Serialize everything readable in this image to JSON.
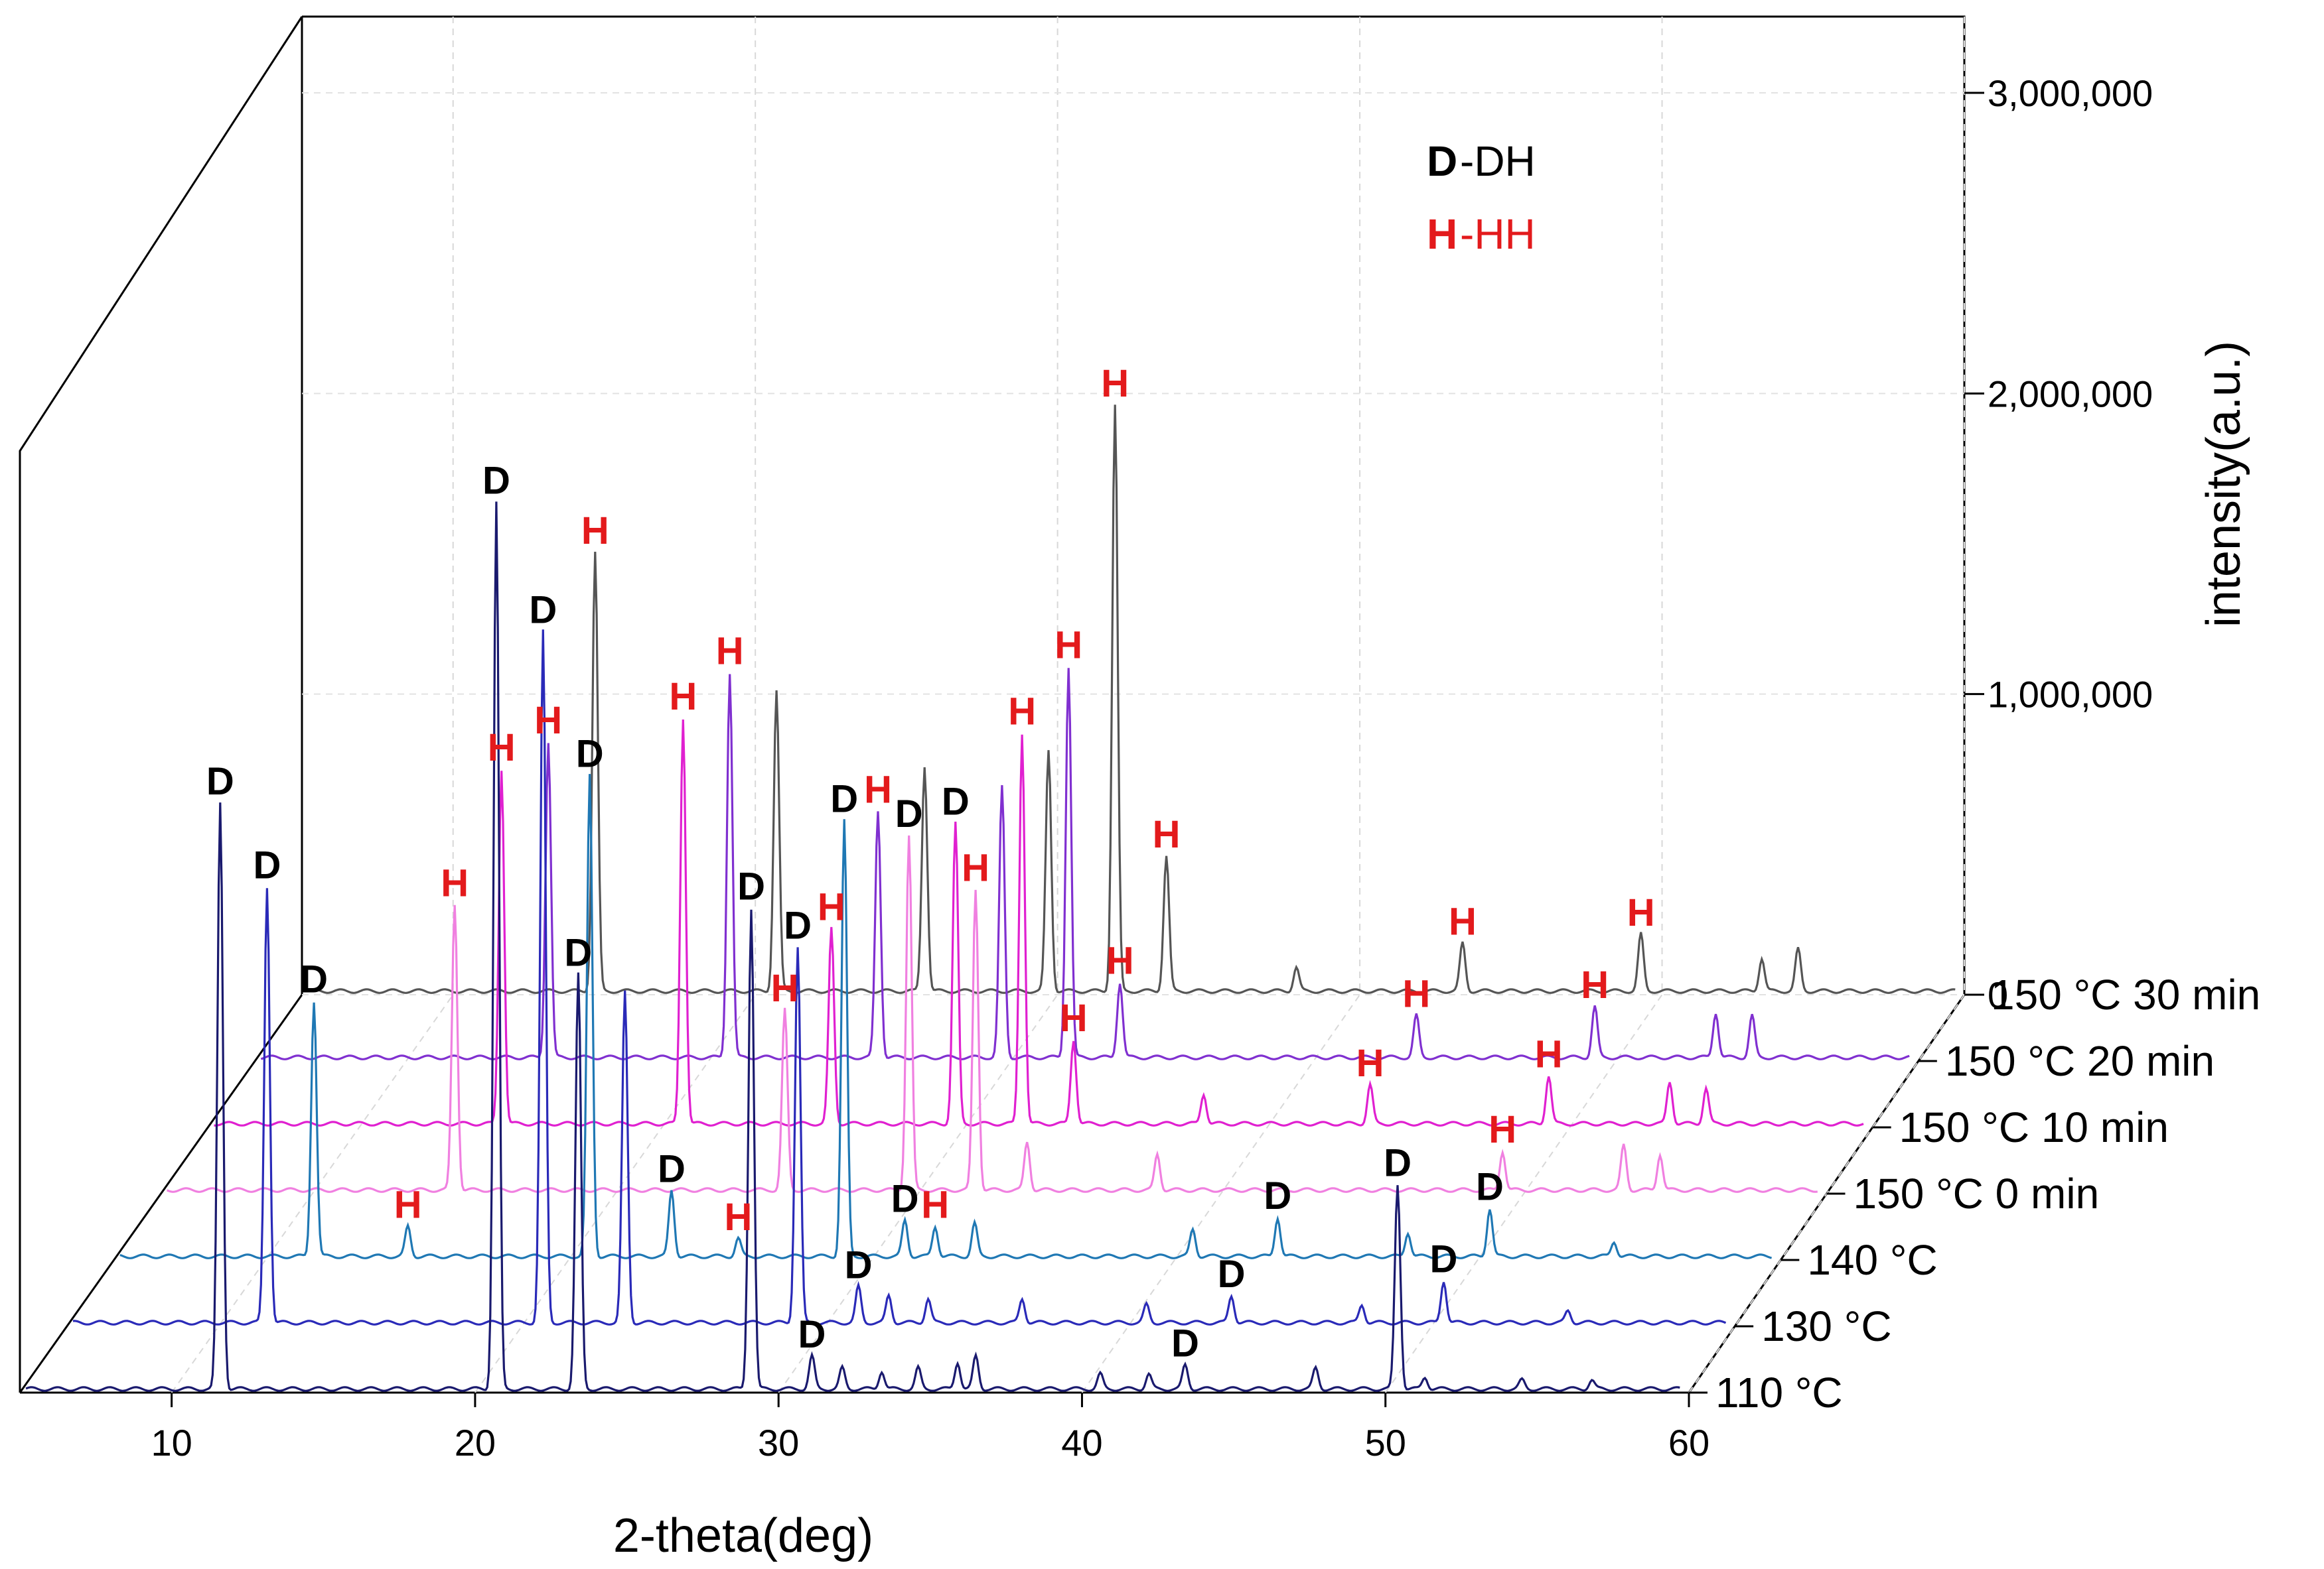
{
  "chart_data": {
    "type": "line",
    "title": "",
    "xlabel": "2-theta(deg)",
    "zlabel": "intensity(a.u.)",
    "xlim": [
      5,
      60
    ],
    "zlim": [
      0,
      3000000
    ],
    "x_ticks": [
      10,
      20,
      30,
      40,
      50,
      60
    ],
    "z_ticks": [
      {
        "value": 0,
        "label": "0"
      },
      {
        "value": 1000000,
        "label": "1,000,000"
      },
      {
        "value": 2000000,
        "label": "2,000,000"
      },
      {
        "value": 3000000,
        "label": "3,000,000"
      }
    ],
    "legend": [
      {
        "symbol": "D",
        "text": "-DH",
        "color": "#000000"
      },
      {
        "symbol": "H",
        "text": "-HH",
        "color": "#e31a1c"
      }
    ],
    "series": [
      {
        "name": "110 °C",
        "color": "#1a1a6e",
        "peaks": [
          {
            "x": 11.6,
            "y": 1950000,
            "label": "D"
          },
          {
            "x": 20.7,
            "y": 2950000,
            "label": "D"
          },
          {
            "x": 23.4,
            "y": 1380000,
            "label": "D"
          },
          {
            "x": 29.1,
            "y": 1600000,
            "label": "D"
          },
          {
            "x": 31.1,
            "y": 110000,
            "label": "D"
          },
          {
            "x": 32.1,
            "y": 70000
          },
          {
            "x": 33.4,
            "y": 60000
          },
          {
            "x": 34.6,
            "y": 70000
          },
          {
            "x": 35.9,
            "y": 90000
          },
          {
            "x": 36.5,
            "y": 110000
          },
          {
            "x": 40.6,
            "y": 50000
          },
          {
            "x": 42.2,
            "y": 50000
          },
          {
            "x": 43.4,
            "y": 80000,
            "label": "D"
          },
          {
            "x": 47.7,
            "y": 70000
          },
          {
            "x": 50.4,
            "y": 680000,
            "label": "D"
          },
          {
            "x": 51.3,
            "y": 40000
          },
          {
            "x": 54.5,
            "y": 30000
          },
          {
            "x": 56.8,
            "y": 30000
          }
        ]
      },
      {
        "name": "130 °C",
        "color": "#2a2ab8",
        "peaks": [
          {
            "x": 11.6,
            "y": 1450000,
            "label": "D"
          },
          {
            "x": 20.7,
            "y": 2300000,
            "label": "D"
          },
          {
            "x": 23.4,
            "y": 1100000
          },
          {
            "x": 29.1,
            "y": 1250000,
            "label": "D"
          },
          {
            "x": 31.1,
            "y": 120000,
            "label": "D"
          },
          {
            "x": 32.1,
            "y": 90000
          },
          {
            "x": 33.4,
            "y": 80000
          },
          {
            "x": 36.5,
            "y": 80000
          },
          {
            "x": 40.6,
            "y": 60000
          },
          {
            "x": 43.4,
            "y": 90000,
            "label": "D"
          },
          {
            "x": 47.7,
            "y": 60000
          },
          {
            "x": 50.4,
            "y": 140000,
            "label": "D"
          },
          {
            "x": 54.5,
            "y": 40000
          }
        ]
      },
      {
        "name": "140 °C",
        "color": "#1f78b4",
        "peaks": [
          {
            "x": 11.6,
            "y": 850000,
            "label": "D"
          },
          {
            "x": 14.7,
            "y": 100000,
            "label": "H"
          },
          {
            "x": 20.7,
            "y": 1600000,
            "label": "D"
          },
          {
            "x": 23.4,
            "y": 220000,
            "label": "D"
          },
          {
            "x": 25.6,
            "y": 60000,
            "label": "H"
          },
          {
            "x": 29.1,
            "y": 1450000,
            "label": "D"
          },
          {
            "x": 31.1,
            "y": 120000,
            "label": "D"
          },
          {
            "x": 32.1,
            "y": 100000,
            "label": "H"
          },
          {
            "x": 33.4,
            "y": 110000
          },
          {
            "x": 40.6,
            "y": 90000
          },
          {
            "x": 43.4,
            "y": 130000,
            "label": "D"
          },
          {
            "x": 47.7,
            "y": 80000
          },
          {
            "x": 50.4,
            "y": 160000,
            "label": "D"
          },
          {
            "x": 54.5,
            "y": 50000
          }
        ]
      },
      {
        "name": "150 °C 0 min",
        "color": "#f080e0",
        "peaks": [
          {
            "x": 14.7,
            "y": 950000,
            "label": "H"
          },
          {
            "x": 25.6,
            "y": 600000,
            "label": "H"
          },
          {
            "x": 29.7,
            "y": 1180000,
            "label": "D"
          },
          {
            "x": 31.9,
            "y": 1000000,
            "label": "H"
          },
          {
            "x": 33.6,
            "y": 160000
          },
          {
            "x": 37.9,
            "y": 120000
          },
          {
            "x": 49.3,
            "y": 130000,
            "label": "H"
          },
          {
            "x": 53.3,
            "y": 150000
          },
          {
            "x": 54.5,
            "y": 120000
          }
        ]
      },
      {
        "name": "150 °C 10 min",
        "color": "#e020d0",
        "peaks": [
          {
            "x": 14.7,
            "y": 1180000,
            "label": "H"
          },
          {
            "x": 20.7,
            "y": 1350000,
            "label": "H"
          },
          {
            "x": 25.6,
            "y": 650000,
            "label": "H"
          },
          {
            "x": 29.7,
            "y": 1000000,
            "label": "D"
          },
          {
            "x": 31.9,
            "y": 1300000,
            "label": "H"
          },
          {
            "x": 33.6,
            "y": 280000,
            "label": "H"
          },
          {
            "x": 37.9,
            "y": 100000
          },
          {
            "x": 43.4,
            "y": 130000,
            "label": "H"
          },
          {
            "x": 49.3,
            "y": 160000,
            "label": "H"
          },
          {
            "x": 53.3,
            "y": 140000
          },
          {
            "x": 54.5,
            "y": 120000
          }
        ]
      },
      {
        "name": "150 °C 20 min",
        "color": "#8030d0",
        "peaks": [
          {
            "x": 14.7,
            "y": 1050000,
            "label": "H"
          },
          {
            "x": 20.7,
            "y": 1280000,
            "label": "H"
          },
          {
            "x": 25.6,
            "y": 820000,
            "label": "H"
          },
          {
            "x": 29.7,
            "y": 900000
          },
          {
            "x": 31.9,
            "y": 1300000,
            "label": "H"
          },
          {
            "x": 33.6,
            "y": 250000,
            "label": "H"
          },
          {
            "x": 43.4,
            "y": 140000,
            "label": "H"
          },
          {
            "x": 49.3,
            "y": 170000,
            "label": "H"
          },
          {
            "x": 53.3,
            "y": 150000
          },
          {
            "x": 54.5,
            "y": 140000
          }
        ]
      },
      {
        "name": "150 °C 30 min",
        "color": "#555555",
        "peaks": [
          {
            "x": 14.7,
            "y": 1460000,
            "label": "H"
          },
          {
            "x": 20.7,
            "y": 1000000
          },
          {
            "x": 25.6,
            "y": 750000
          },
          {
            "x": 29.7,
            "y": 800000
          },
          {
            "x": 31.9,
            "y": 1950000,
            "label": "H"
          },
          {
            "x": 33.6,
            "y": 450000,
            "label": "H"
          },
          {
            "x": 37.9,
            "y": 80000
          },
          {
            "x": 43.4,
            "y": 160000,
            "label": "H"
          },
          {
            "x": 49.3,
            "y": 190000,
            "label": "H"
          },
          {
            "x": 53.3,
            "y": 110000
          },
          {
            "x": 54.5,
            "y": 140000
          }
        ]
      }
    ]
  }
}
